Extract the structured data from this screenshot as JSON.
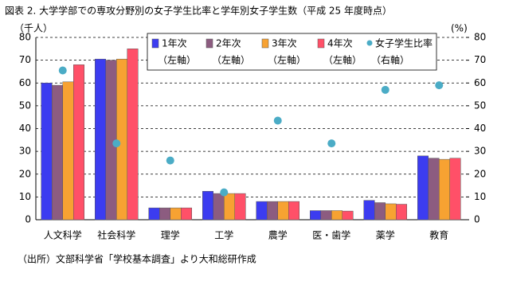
{
  "chart_data": {
    "type": "bar",
    "title": "図表 2.  大学学部での専攻分野別の女子学生比率と学年別女子学生数（平成 25 年度時点）",
    "y_label": "（千人）",
    "y2_label": "(%)",
    "source": "（出所）文部科学省「学校基本調査」より大和総研作成",
    "categories": [
      "人文科学",
      "社会科学",
      "理学",
      "工学",
      "農学",
      "医・歯学",
      "薬学",
      "教育"
    ],
    "series": [
      {
        "name": "1年次",
        "axis_note": "（左軸）",
        "color": "#3c3cf0",
        "values": [
          60,
          70.5,
          5.2,
          12.5,
          8,
          4,
          8.5,
          28
        ]
      },
      {
        "name": "2年次",
        "axis_note": "（左軸）",
        "color": "#8c5c80",
        "values": [
          59,
          70,
          5.2,
          11.5,
          8,
          4,
          7.5,
          27
        ]
      },
      {
        "name": "3年次",
        "axis_note": "（左軸）",
        "color": "#f7a232",
        "values": [
          60.5,
          70.5,
          5.2,
          11.5,
          8,
          4,
          7,
          26.5
        ]
      },
      {
        "name": "4年次",
        "axis_note": "（左軸）",
        "color": "#ff5068",
        "values": [
          68,
          75,
          5.2,
          11.5,
          8,
          3.8,
          6.8,
          27
        ]
      },
      {
        "name": "女子学生比率",
        "axis_note": "（右軸）",
        "color": "#4bacc6",
        "axis": "y2",
        "values": [
          65.5,
          33.5,
          26,
          12,
          43.5,
          33.5,
          57,
          59
        ]
      }
    ],
    "ylim": [
      0,
      80
    ],
    "yticks": [
      0,
      10,
      20,
      30,
      40,
      50,
      60,
      70,
      80
    ],
    "y2lim": [
      0,
      80
    ],
    "y2ticks": [
      0,
      10,
      20,
      30,
      40,
      50,
      60,
      70,
      80
    ],
    "grid": true
  }
}
